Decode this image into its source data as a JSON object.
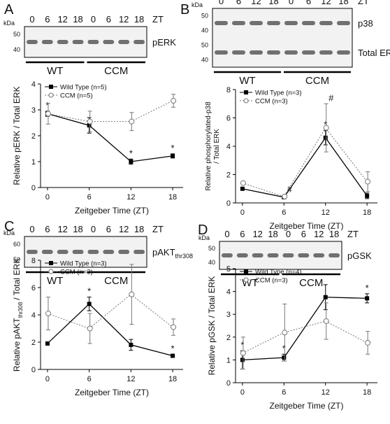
{
  "blots": [
    {
      "panel": "A",
      "kda_header": "kDa",
      "kda": [
        "50",
        "40"
      ],
      "lanes": [
        "0",
        "6",
        "12",
        "18",
        "0",
        "6",
        "12",
        "18"
      ],
      "zt": "ZT",
      "proteins": [
        {
          "text": "pERK"
        }
      ],
      "groups": [
        "WT",
        "CCM"
      ]
    },
    {
      "panel": "B",
      "kda_header": "kDa",
      "kda": [
        "50",
        "40",
        "50",
        "40"
      ],
      "lanes": [
        "0",
        "6",
        "12",
        "18",
        "0",
        "6",
        "12",
        "18"
      ],
      "zt": "ZT",
      "proteins": [
        {
          "text": "p38"
        },
        {
          "text": "Total ERK"
        }
      ],
      "groups": [
        "WT",
        "CCM"
      ]
    },
    {
      "panel": "C",
      "kda_header": "kDa",
      "kda": [
        "60",
        "50"
      ],
      "lanes": [
        "0",
        "6",
        "12",
        "18",
        "0",
        "6",
        "12",
        "18"
      ],
      "zt": "ZT",
      "proteins": [
        {
          "text": "pAKT",
          "sub": "thr308"
        }
      ],
      "groups": [
        "WT",
        "CCM"
      ]
    },
    {
      "panel": "D",
      "kda_header": "kDa",
      "kda": [
        "50",
        "40"
      ],
      "lanes": [
        "0",
        "6",
        "12",
        "18",
        "0",
        "6",
        "12",
        "18"
      ],
      "zt": "ZT",
      "proteins": [
        {
          "text": "pGSK"
        }
      ],
      "groups": [
        "WT",
        "CCM"
      ]
    }
  ],
  "chart_data": [
    {
      "type": "line",
      "xlabel": "Zeitgeber Time (ZT)",
      "ylabel": [
        "Relative pERK / Total ERK"
      ],
      "x": [
        0,
        6,
        12,
        18
      ],
      "xlim": [
        -1,
        19.5
      ],
      "xticks": [
        0,
        6,
        12,
        18
      ],
      "ylim": [
        0,
        4
      ],
      "yticks": [
        0,
        1,
        2,
        3,
        4
      ],
      "series": [
        {
          "name": "Wild Type (n=5)",
          "color": "#000000",
          "values": [
            2.85,
            2.4,
            1.0,
            1.22
          ],
          "errors": [
            0.1,
            0.3,
            0.1,
            0.08
          ],
          "annotations": [
            "*",
            null,
            "*",
            "*"
          ]
        },
        {
          "name": "CCM (n=5)",
          "color": "#777777",
          "values": [
            2.85,
            2.55,
            2.55,
            3.35
          ],
          "errors": [
            0.4,
            0.4,
            0.35,
            0.25
          ],
          "annotations": [
            null,
            null,
            null,
            null
          ]
        }
      ]
    },
    {
      "type": "line",
      "xlabel": "Zeitgeber Time (ZT)",
      "ylabel": [
        "Relative phosphorylated-p38",
        "/ Total ERK"
      ],
      "x": [
        0,
        6,
        12,
        18
      ],
      "xlim": [
        -1,
        19.5
      ],
      "xticks": [
        0,
        6,
        12,
        18
      ],
      "ylim": [
        0,
        8
      ],
      "yticks": [
        0,
        2,
        4,
        6,
        8
      ],
      "series": [
        {
          "name": "Wild Type (n=3)",
          "color": "#000000",
          "values": [
            1.0,
            0.4,
            4.6,
            0.5
          ],
          "errors": [
            0.1,
            0.1,
            0.5,
            0.2
          ],
          "annotations": [
            null,
            null,
            "*",
            null
          ]
        },
        {
          "name": "CCM (n=3)",
          "color": "#777777",
          "values": [
            1.4,
            0.45,
            5.3,
            1.5
          ],
          "errors": [
            0.1,
            0.1,
            1.7,
            0.7
          ],
          "annotations": [
            null,
            "#",
            "#",
            null
          ]
        }
      ]
    },
    {
      "type": "line",
      "xlabel": "Zeitgeber Time (ZT)",
      "ylabel": [
        "Relative pAKT"
      ],
      "ylabel_sub": "thr308",
      "ylabel_tail": "/ Total ERK",
      "x": [
        0,
        6,
        12,
        18
      ],
      "xlim": [
        -1,
        19.5
      ],
      "xticks": [
        0,
        6,
        12,
        18
      ],
      "ylim": [
        0,
        8
      ],
      "yticks": [
        0,
        2,
        4,
        6,
        8
      ],
      "series": [
        {
          "name": "Wild Type (n=3)",
          "color": "#000000",
          "values": [
            1.9,
            4.8,
            1.8,
            1.0
          ],
          "errors": [
            0.1,
            0.5,
            0.4,
            0.1
          ],
          "annotations": [
            null,
            "*",
            null,
            "*"
          ]
        },
        {
          "name": "CCM (n=3)",
          "color": "#777777",
          "values": [
            4.1,
            3.0,
            5.5,
            3.1
          ],
          "errors": [
            1.2,
            1.1,
            2.2,
            0.6
          ],
          "annotations": [
            null,
            null,
            null,
            null
          ]
        }
      ]
    },
    {
      "type": "line",
      "xlabel": "Zeitgeber Time (ZT)",
      "ylabel": [
        "Relative pGSK / Total ERK"
      ],
      "x": [
        0,
        6,
        12,
        18
      ],
      "xlim": [
        -1,
        19.5
      ],
      "xticks": [
        0,
        6,
        12,
        18
      ],
      "ylim": [
        0,
        5
      ],
      "yticks": [
        0,
        1,
        2,
        3,
        4,
        5
      ],
      "series": [
        {
          "name": "Wild Type (n=4)",
          "color": "#000000",
          "values": [
            1.0,
            1.1,
            3.75,
            3.7
          ],
          "errors": [
            0.4,
            0.15,
            0.55,
            0.2
          ],
          "annotations": [
            "*",
            "*",
            null,
            "*"
          ]
        },
        {
          "name": "CCM (n=3)",
          "color": "#777777",
          "values": [
            1.3,
            2.2,
            2.7,
            1.75
          ],
          "errors": [
            0.7,
            1.25,
            0.8,
            0.5
          ],
          "annotations": [
            null,
            null,
            null,
            null
          ]
        }
      ]
    }
  ]
}
